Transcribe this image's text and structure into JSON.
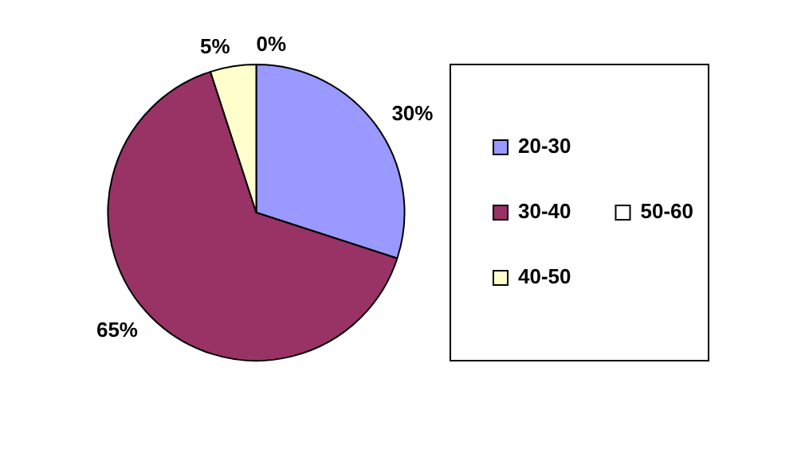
{
  "chart_data": {
    "type": "pie",
    "categories": [
      "20-30",
      "30-40",
      "40-50",
      "50-60"
    ],
    "values": [
      30,
      65,
      5,
      0
    ],
    "colors": [
      "#9999ff",
      "#993366",
      "#ffffcc",
      "#ffffff"
    ],
    "value_labels": [
      "30%",
      "65%",
      "5%",
      "0%"
    ],
    "legend": "right"
  }
}
